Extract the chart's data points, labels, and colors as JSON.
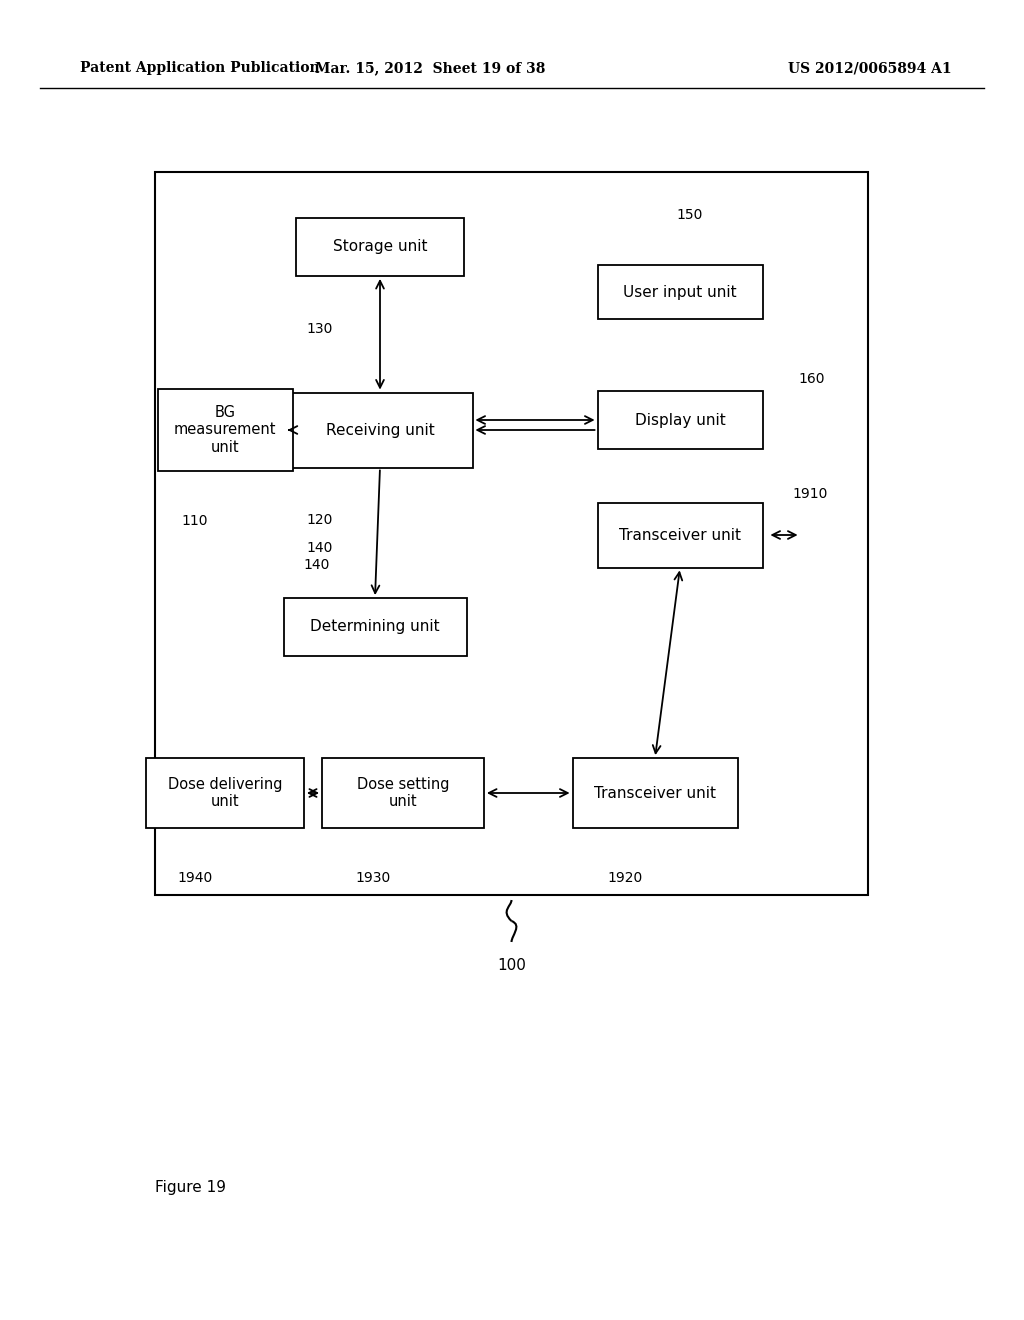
{
  "header_left": "Patent Application Publication",
  "header_mid": "Mar. 15, 2012  Sheet 19 of 38",
  "header_right": "US 2012/0065894 A1",
  "figure_label": "Figure 19",
  "background_color": "#ffffff"
}
